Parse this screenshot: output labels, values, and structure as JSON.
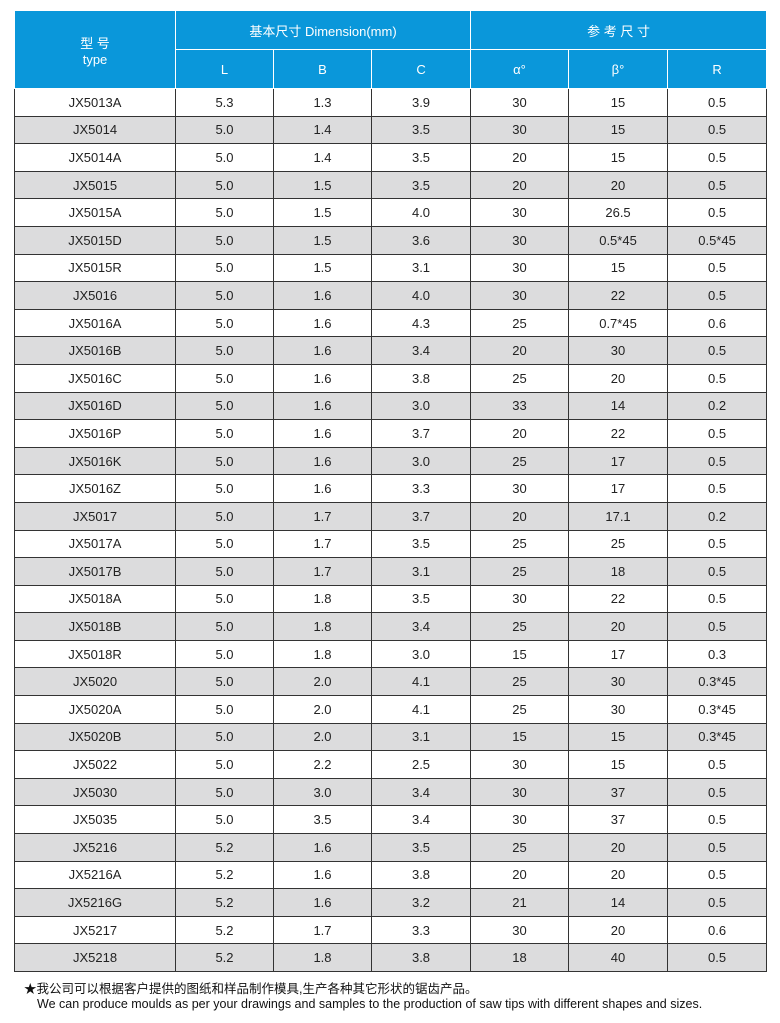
{
  "header": {
    "type_cn": "型 号",
    "type_en": "type",
    "dim": "基本尺寸 Dimension(mm)",
    "ref": "参 考 尺 寸",
    "cols": [
      "L",
      "B",
      "C",
      "α°",
      "β°",
      "R"
    ]
  },
  "rows": [
    [
      "JX5013A",
      "5.3",
      "1.3",
      "3.9",
      "30",
      "15",
      "0.5"
    ],
    [
      "JX5014",
      "5.0",
      "1.4",
      "3.5",
      "30",
      "15",
      "0.5"
    ],
    [
      "JX5014A",
      "5.0",
      "1.4",
      "3.5",
      "20",
      "15",
      "0.5"
    ],
    [
      "JX5015",
      "5.0",
      "1.5",
      "3.5",
      "20",
      "20",
      "0.5"
    ],
    [
      "JX5015A",
      "5.0",
      "1.5",
      "4.0",
      "30",
      "26.5",
      "0.5"
    ],
    [
      "JX5015D",
      "5.0",
      "1.5",
      "3.6",
      "30",
      "0.5*45",
      "0.5*45"
    ],
    [
      "JX5015R",
      "5.0",
      "1.5",
      "3.1",
      "30",
      "15",
      "0.5"
    ],
    [
      "JX5016",
      "5.0",
      "1.6",
      "4.0",
      "30",
      "22",
      "0.5"
    ],
    [
      "JX5016A",
      "5.0",
      "1.6",
      "4.3",
      "25",
      "0.7*45",
      "0.6"
    ],
    [
      "JX5016B",
      "5.0",
      "1.6",
      "3.4",
      "20",
      "30",
      "0.5"
    ],
    [
      "JX5016C",
      "5.0",
      "1.6",
      "3.8",
      "25",
      "20",
      "0.5"
    ],
    [
      "JX5016D",
      "5.0",
      "1.6",
      "3.0",
      "33",
      "14",
      "0.2"
    ],
    [
      "JX5016P",
      "5.0",
      "1.6",
      "3.7",
      "20",
      "22",
      "0.5"
    ],
    [
      "JX5016K",
      "5.0",
      "1.6",
      "3.0",
      "25",
      "17",
      "0.5"
    ],
    [
      "JX5016Z",
      "5.0",
      "1.6",
      "3.3",
      "30",
      "17",
      "0.5"
    ],
    [
      "JX5017",
      "5.0",
      "1.7",
      "3.7",
      "20",
      "17.1",
      "0.2"
    ],
    [
      "JX5017A",
      "5.0",
      "1.7",
      "3.5",
      "25",
      "25",
      "0.5"
    ],
    [
      "JX5017B",
      "5.0",
      "1.7",
      "3.1",
      "25",
      "18",
      "0.5"
    ],
    [
      "JX5018A",
      "5.0",
      "1.8",
      "3.5",
      "30",
      "22",
      "0.5"
    ],
    [
      "JX5018B",
      "5.0",
      "1.8",
      "3.4",
      "25",
      "20",
      "0.5"
    ],
    [
      "JX5018R",
      "5.0",
      "1.8",
      "3.0",
      "15",
      "17",
      "0.3"
    ],
    [
      "JX5020",
      "5.0",
      "2.0",
      "4.1",
      "25",
      "30",
      "0.3*45"
    ],
    [
      "JX5020A",
      "5.0",
      "2.0",
      "4.1",
      "25",
      "30",
      "0.3*45"
    ],
    [
      "JX5020B",
      "5.0",
      "2.0",
      "3.1",
      "15",
      "15",
      "0.3*45"
    ],
    [
      "JX5022",
      "5.0",
      "2.2",
      "2.5",
      "30",
      "15",
      "0.5"
    ],
    [
      "JX5030",
      "5.0",
      "3.0",
      "3.4",
      "30",
      "37",
      "0.5"
    ],
    [
      "JX5035",
      "5.0",
      "3.5",
      "3.4",
      "30",
      "37",
      "0.5"
    ],
    [
      "JX5216",
      "5.2",
      "1.6",
      "3.5",
      "25",
      "20",
      "0.5"
    ],
    [
      "JX5216A",
      "5.2",
      "1.6",
      "3.8",
      "20",
      "20",
      "0.5"
    ],
    [
      "JX5216G",
      "5.2",
      "1.6",
      "3.2",
      "21",
      "14",
      "0.5"
    ],
    [
      "JX5217",
      "5.2",
      "1.7",
      "3.3",
      "30",
      "20",
      "0.6"
    ],
    [
      "JX5218",
      "5.2",
      "1.8",
      "3.8",
      "18",
      "40",
      "0.5"
    ]
  ],
  "note": {
    "cn": "★我公司可以根据客户提供的图纸和样品制作模具,生产各种其它形状的锯齿产品。",
    "en": "We can produce moulds as per your drawings and samples to the production of saw tips with different shapes and sizes."
  }
}
